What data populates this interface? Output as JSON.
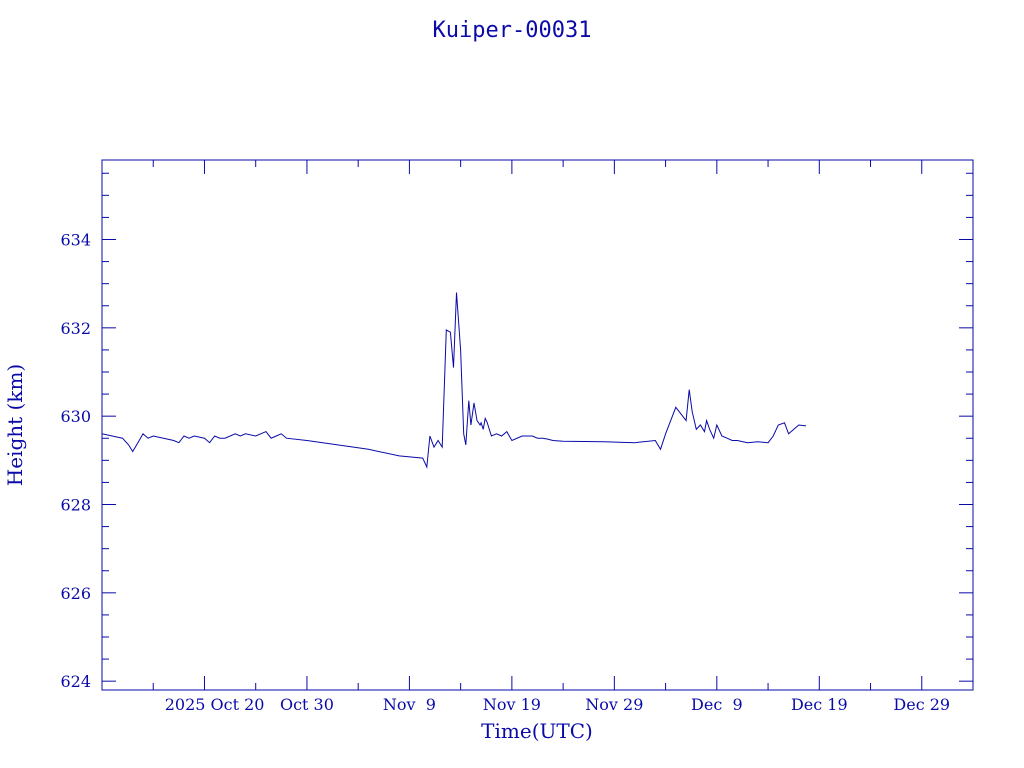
{
  "colors": {
    "ink": "#0a0aa8",
    "background": "#ffffff"
  },
  "chart_data": {
    "type": "line",
    "title": "Kuiper-00031",
    "xlabel": "Time(UTC)",
    "ylabel": "Height (km)",
    "x_ticks": [
      "2025 Oct 20",
      "Oct 30",
      "Nov  9",
      "Nov 19",
      "Nov 29",
      "Dec  9",
      "Dec 19",
      "Dec 29"
    ],
    "y_ticks": [
      "624",
      "626",
      "628",
      "630",
      "632",
      "634"
    ],
    "xlim": [
      "2025-10-10",
      "2026-01-03"
    ],
    "ylim": [
      623.8,
      635.8
    ],
    "grid": false,
    "series": [
      {
        "x": [
          "2025-10-10",
          "2025-10-11",
          "2025-10-12",
          "2025-10-12.6",
          "2025-10-13",
          "2025-10-13.5",
          "2025-10-14",
          "2025-10-14.5",
          "2025-10-15",
          "2025-10-16",
          "2025-10-17",
          "2025-10-17.5",
          "2025-10-18",
          "2025-10-18.5",
          "2025-10-19",
          "2025-10-20",
          "2025-10-20.5",
          "2025-10-21",
          "2025-10-21.5",
          "2025-10-22",
          "2025-10-23",
          "2025-10-23.5",
          "2025-10-24",
          "2025-10-25",
          "2025-10-26",
          "2025-10-26.5",
          "2025-10-27",
          "2025-10-27.5",
          "2025-10-28",
          "2025-10-30",
          "2025-11-02",
          "2025-11-05",
          "2025-11-08",
          "2025-11-10.3",
          "2025-11-10.7",
          "2025-11-11",
          "2025-11-11.4",
          "2025-11-11.8",
          "2025-11-12.2",
          "2025-11-12.6",
          "2025-11-13",
          "2025-11-13.3",
          "2025-11-13.6",
          "2025-11-14",
          "2025-11-14.3",
          "2025-11-14.5",
          "2025-11-14.8",
          "2025-11-15",
          "2025-11-15.3",
          "2025-11-15.6",
          "2025-11-15.9",
          "2025-11-16",
          "2025-11-16.2",
          "2025-11-16.4",
          "2025-11-16.6",
          "2025-11-16.8",
          "2025-11-17",
          "2025-11-17.5",
          "2025-11-18",
          "2025-11-18.5",
          "2025-11-19",
          "2025-11-20",
          "2025-11-21",
          "2025-11-21.5",
          "2025-11-22",
          "2025-11-22.5",
          "2025-11-23",
          "2025-11-24",
          "2025-11-28",
          "2025-12-01",
          "2025-12-03",
          "2025-12-03.5",
          "2025-12-04",
          "2025-12-05",
          "2025-12-06",
          "2025-12-06.3",
          "2025-12-06.6",
          "2025-12-07",
          "2025-12-07.4",
          "2025-12-07.8",
          "2025-12-08",
          "2025-12-08.3",
          "2025-12-08.7",
          "2025-12-09",
          "2025-12-09.5",
          "2025-12-10",
          "2025-12-10.5",
          "2025-12-11",
          "2025-12-12",
          "2025-12-13",
          "2025-12-14",
          "2025-12-14.5",
          "2025-12-15",
          "2025-12-15.6",
          "2025-12-16",
          "2025-12-16.5",
          "2025-12-17",
          "2025-12-17.7"
        ],
        "values": [
          629.6,
          629.55,
          629.5,
          629.35,
          629.2,
          629.4,
          629.6,
          629.5,
          629.55,
          629.5,
          629.45,
          629.4,
          629.55,
          629.5,
          629.55,
          629.5,
          629.4,
          629.55,
          629.5,
          629.5,
          629.6,
          629.55,
          629.6,
          629.55,
          629.65,
          629.5,
          629.55,
          629.6,
          629.5,
          629.45,
          629.35,
          629.25,
          629.1,
          629.05,
          628.85,
          629.55,
          629.3,
          629.45,
          629.3,
          631.95,
          631.9,
          631.1,
          632.8,
          631.5,
          629.6,
          629.35,
          630.35,
          629.8,
          630.3,
          629.9,
          629.8,
          629.85,
          629.7,
          629.95,
          629.85,
          629.7,
          629.55,
          629.6,
          629.55,
          629.65,
          629.45,
          629.55,
          629.55,
          629.5,
          629.5,
          629.48,
          629.45,
          629.43,
          629.42,
          629.4,
          629.45,
          629.25,
          629.6,
          630.2,
          629.9,
          630.6,
          630.1,
          629.7,
          629.8,
          629.65,
          629.9,
          629.7,
          629.5,
          629.8,
          629.55,
          629.5,
          629.45,
          629.45,
          629.4,
          629.42,
          629.4,
          629.55,
          629.8,
          629.85,
          629.6,
          629.7,
          629.8,
          629.78
        ]
      }
    ]
  }
}
